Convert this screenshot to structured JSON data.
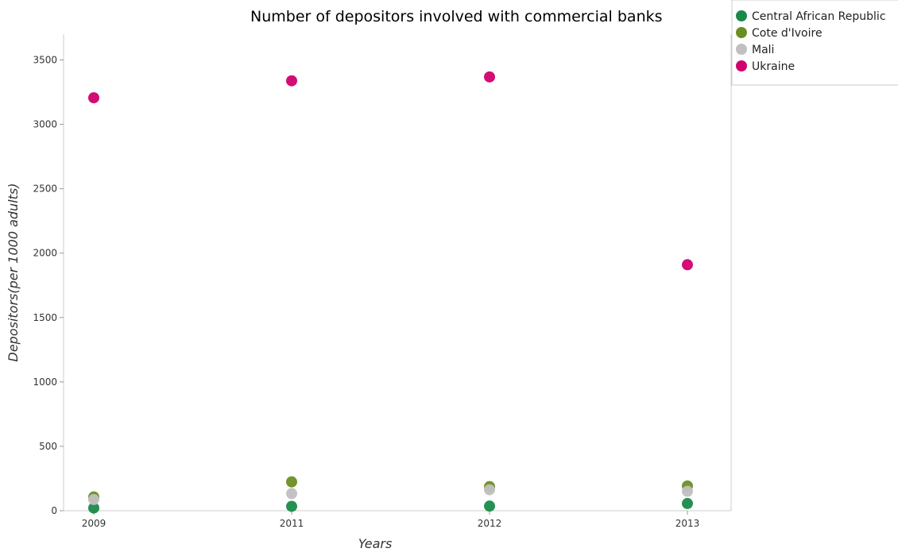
{
  "chart_data": {
    "type": "scatter",
    "title": "Number of depositors involved with commercial banks",
    "xlabel": "Years",
    "ylabel": "Depositors(per 1000 adults)",
    "categories": [
      "2009",
      "2011",
      "2012",
      "2013"
    ],
    "ylim": [
      0,
      3700
    ],
    "yticks": [
      0,
      500,
      1000,
      1500,
      2000,
      2500,
      3000,
      3500
    ],
    "legend_position": "top-right",
    "grid": false,
    "series": [
      {
        "name": "Central African Republic",
        "color": "#1a8a4a",
        "values": [
          21,
          34,
          36,
          56
        ]
      },
      {
        "name": "Cote d'Ivoire",
        "color": "#6b8e23",
        "values": [
          107,
          224,
          187,
          192
        ]
      },
      {
        "name": "Mali",
        "color": "#c0c0c0",
        "values": [
          87,
          133,
          163,
          151
        ]
      },
      {
        "name": "Ukraine",
        "color": "#d0006f",
        "values": [
          3206,
          3338,
          3368,
          1910
        ]
      }
    ]
  }
}
